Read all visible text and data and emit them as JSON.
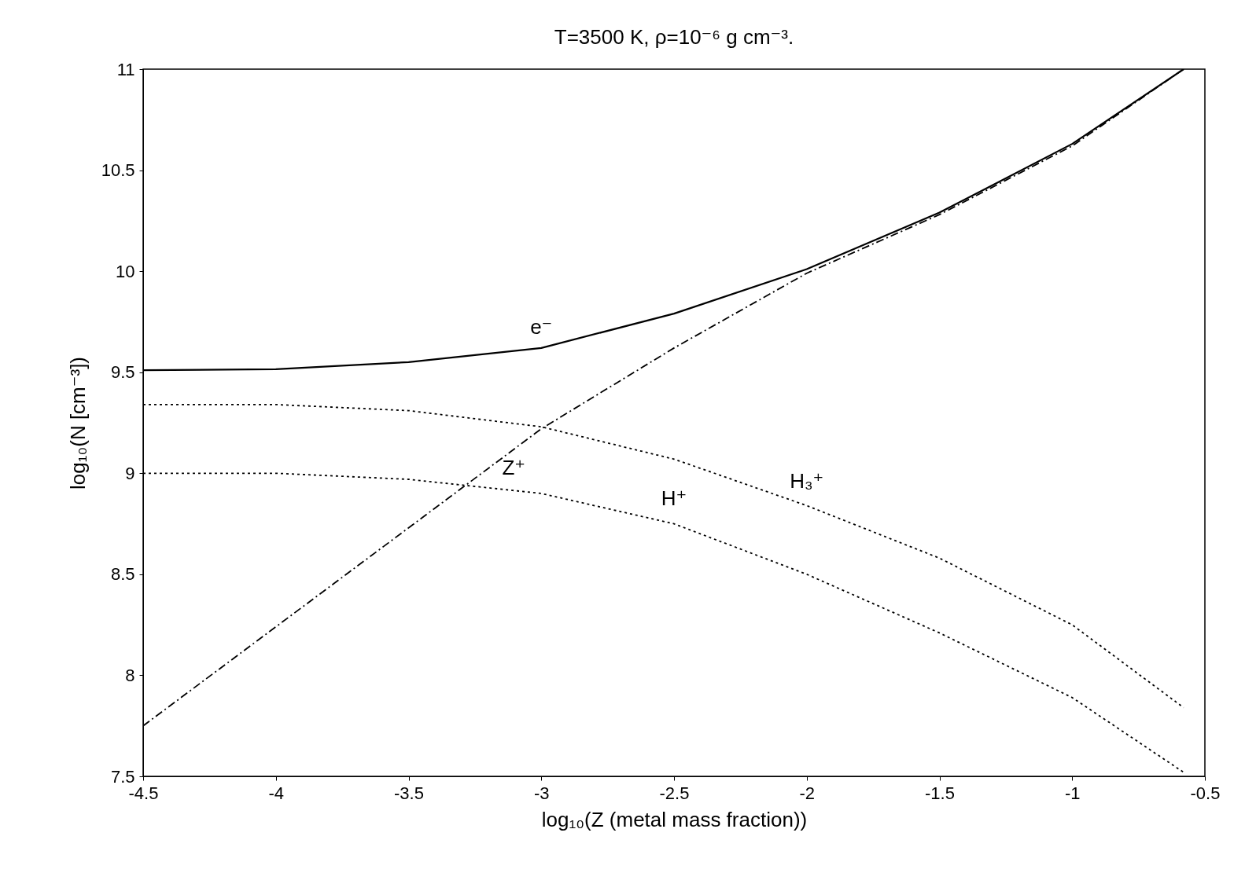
{
  "chart_data": {
    "type": "line",
    "title": "T=3500 K, ρ=10⁻⁶ g cm⁻³.",
    "xlabel": "log₁₀(Z (metal mass fraction))",
    "ylabel": "log₁₀(N [cm⁻³])",
    "xlim": [
      -4.5,
      -0.5
    ],
    "xticks": [
      -4.5,
      -4,
      -3.5,
      -3,
      -2.5,
      -2,
      -1.5,
      -1,
      -0.5
    ],
    "ylim": [
      7.5,
      11
    ],
    "yticks": [
      7.5,
      8,
      8.5,
      9,
      9.5,
      10,
      10.5,
      11
    ],
    "grid": false,
    "x": [
      -4.5,
      -4,
      -3.5,
      -3,
      -2.5,
      -2,
      -1.5,
      -1,
      -0.58
    ],
    "series": [
      {
        "name": "e⁻",
        "color": "#000000",
        "line_style": "solid",
        "values": [
          9.51,
          9.515,
          9.55,
          9.62,
          9.79,
          10.01,
          10.29,
          10.63,
          11.0
        ]
      },
      {
        "name": "Z⁺",
        "color": "#000000",
        "line_style": "dashed",
        "values": [
          7.75,
          8.24,
          8.73,
          9.22,
          9.62,
          9.99,
          10.28,
          10.62,
          11.0
        ]
      },
      {
        "name": "H₃⁺",
        "color": "#000000",
        "line_style": "dotted",
        "values": [
          9.34,
          9.34,
          9.31,
          9.23,
          9.07,
          8.84,
          8.58,
          8.25,
          7.84
        ]
      },
      {
        "name": "H⁺",
        "color": "#000000",
        "line_style": "dotted",
        "values": [
          9.0,
          9.0,
          8.97,
          8.9,
          8.75,
          8.5,
          8.21,
          7.89,
          7.52
        ]
      }
    ]
  }
}
